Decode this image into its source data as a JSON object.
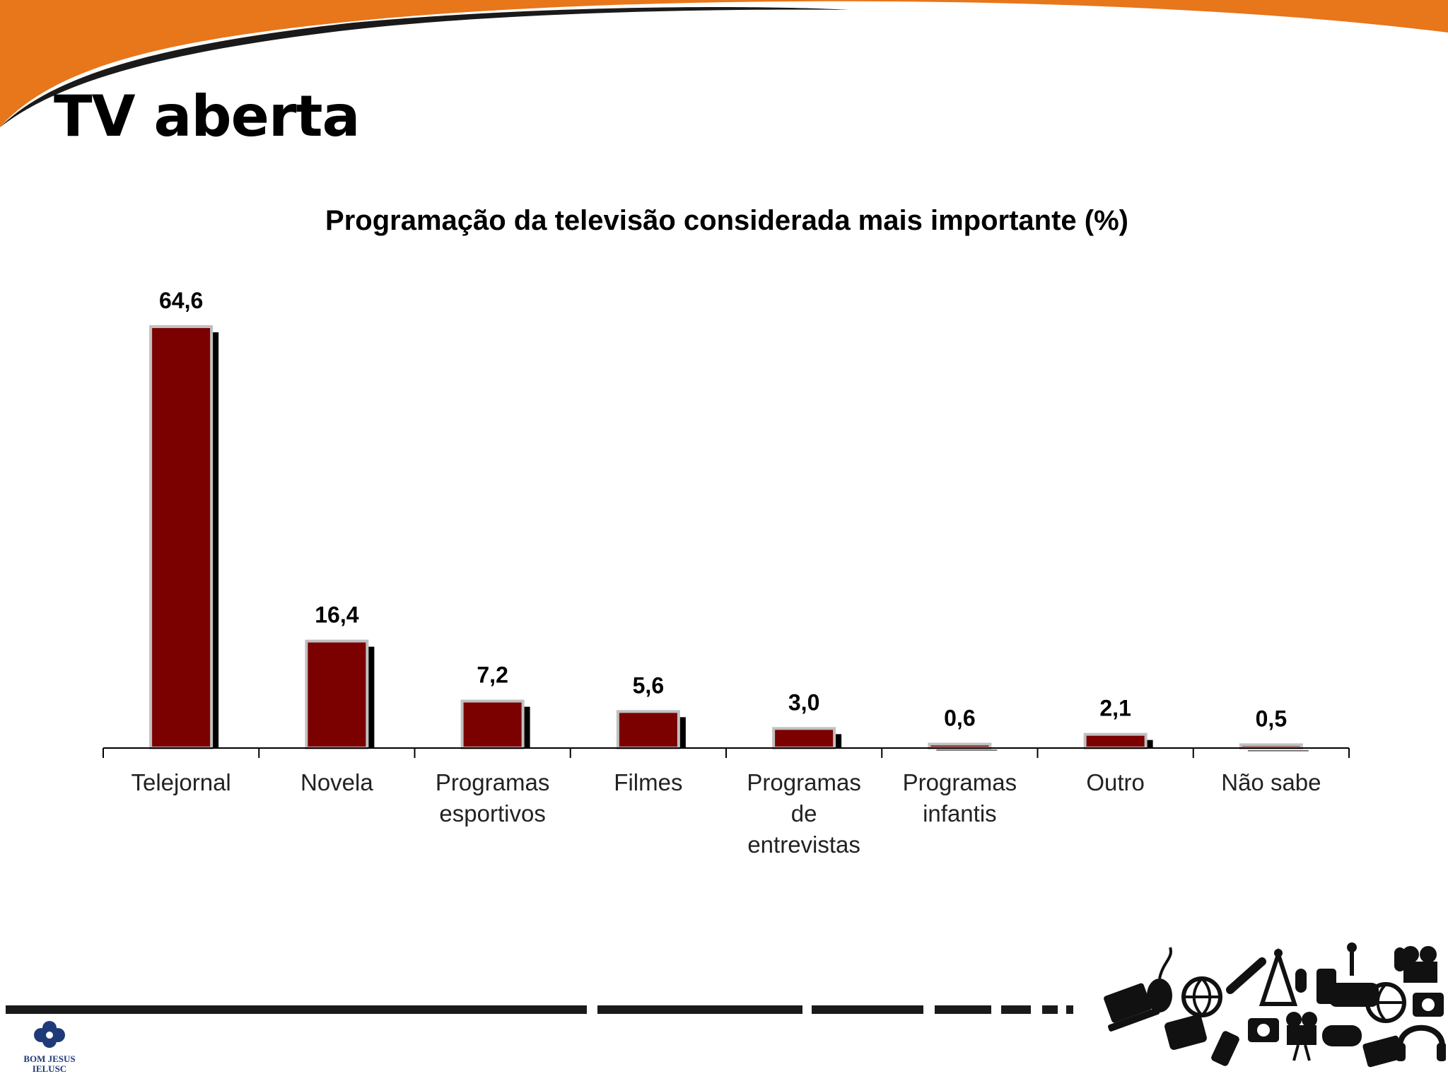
{
  "slide": {
    "title": "TV aberta",
    "accent_color": "#E8761B",
    "logo": {
      "line1": "BOM JESUS",
      "line2": "IELUSC",
      "icon": "bom-jesus-flower-logo"
    },
    "decor_icon": "media-devices-collage-icon"
  },
  "chart_data": {
    "type": "bar",
    "title": "Programação da televisão considerada mais importante (%)",
    "categories": [
      [
        "Telejornal"
      ],
      [
        "Novela"
      ],
      [
        "Programas",
        "esportivos"
      ],
      [
        "Filmes"
      ],
      [
        "Programas",
        "de",
        "entrevistas"
      ],
      [
        "Programas",
        "infantis"
      ],
      [
        "Outro"
      ],
      [
        "Não sabe"
      ]
    ],
    "values": [
      64.6,
      16.4,
      7.2,
      5.6,
      3.0,
      0.6,
      2.1,
      0.5
    ],
    "value_labels": [
      "64,6",
      "16,4",
      "7,2",
      "5,6",
      "3,0",
      "0,6",
      "2,1",
      "0,5"
    ],
    "ylim": [
      0,
      70
    ],
    "grid": false,
    "bar_color": "#7B0000",
    "bar_border_color": "#C0C0C0",
    "shadow_color": "#000000"
  }
}
